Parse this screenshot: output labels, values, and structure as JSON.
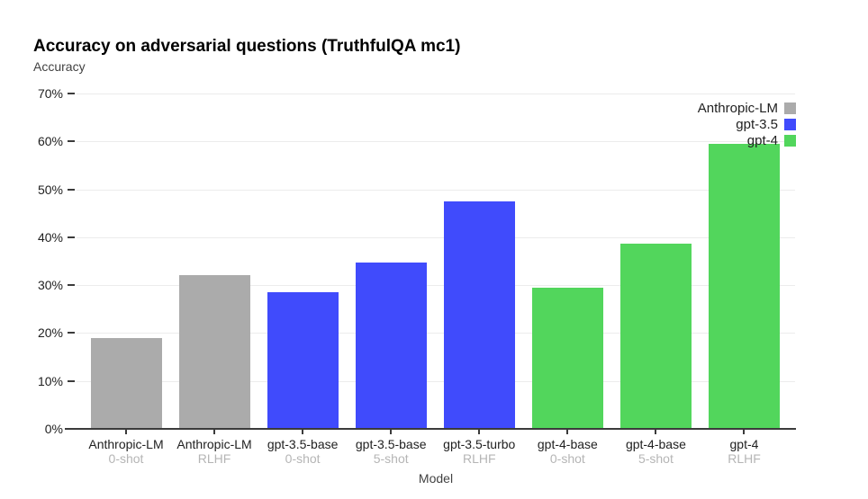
{
  "page": {
    "background": "#ffffff"
  },
  "chart_data": {
    "type": "bar",
    "title": "Accuracy on adversarial questions (TruthfulQA mc1)",
    "y_axis_title": "Accuracy",
    "xlabel": "Model",
    "ylabel": "Accuracy",
    "ylim": [
      0,
      70
    ],
    "y_ticks": [
      0,
      10,
      20,
      30,
      40,
      50,
      60,
      70
    ],
    "y_tick_format": "percent",
    "grid": true,
    "legend_position": "top-right",
    "legend": [
      {
        "label": "Anthropic-LM",
        "color": "#ababab"
      },
      {
        "label": "gpt-3.5",
        "color": "#404bfc"
      },
      {
        "label": "gpt-4",
        "color": "#52d65c"
      }
    ],
    "bars": [
      {
        "model": "Anthropic-LM",
        "variant": "0-shot",
        "series": "Anthropic-LM",
        "value": 19.0
      },
      {
        "model": "Anthropic-LM",
        "variant": "RLHF",
        "series": "Anthropic-LM",
        "value": 32.0
      },
      {
        "model": "gpt-3.5-base",
        "variant": "0-shot",
        "series": "gpt-3.5",
        "value": 28.5
      },
      {
        "model": "gpt-3.5-base",
        "variant": "5-shot",
        "series": "gpt-3.5",
        "value": 34.7
      },
      {
        "model": "gpt-3.5-turbo",
        "variant": "RLHF",
        "series": "gpt-3.5",
        "value": 47.4
      },
      {
        "model": "gpt-4-base",
        "variant": "0-shot",
        "series": "gpt-4",
        "value": 29.5
      },
      {
        "model": "gpt-4-base",
        "variant": "5-shot",
        "series": "gpt-4",
        "value": 38.7
      },
      {
        "model": "gpt-4",
        "variant": "RLHF",
        "series": "gpt-4",
        "value": 59.5
      }
    ],
    "colors": {
      "grid": "#ececec",
      "axis": "#3b3b3b",
      "tick_label": "#212121",
      "variant_label": "#b5b5b5"
    }
  }
}
